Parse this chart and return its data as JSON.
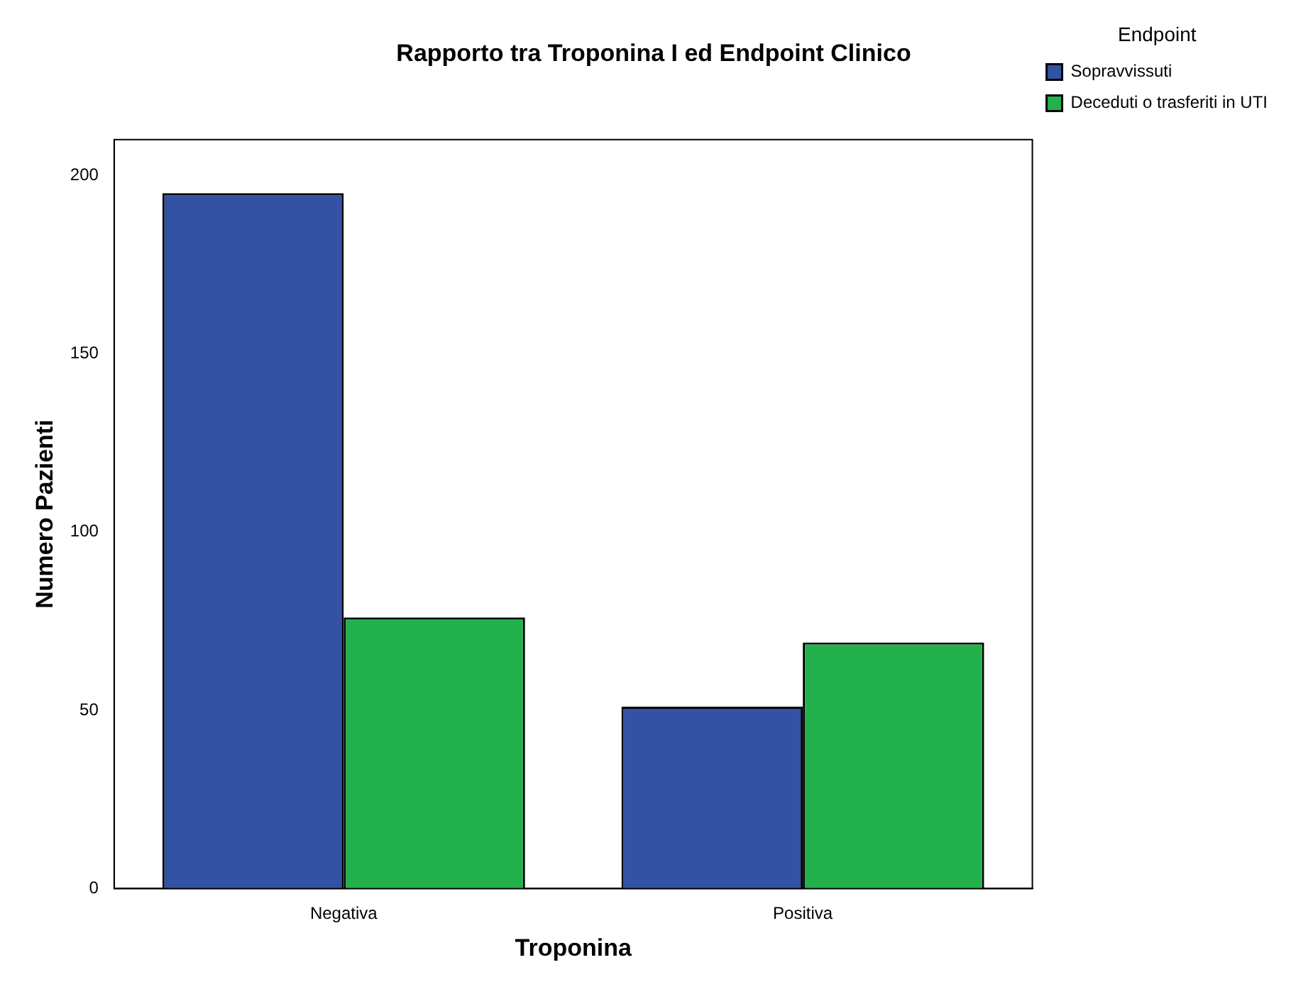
{
  "chart_data": {
    "type": "bar",
    "title": "Rapporto tra Troponina I ed Endpoint Clinico",
    "xlabel": "Troponina",
    "ylabel": "Numero Pazienti",
    "legend_title": "Endpoint",
    "categories": [
      "Negativa",
      "Positiva"
    ],
    "series": [
      {
        "name": "Sopravvissuti",
        "color": "#3352a4",
        "values": [
          195,
          51
        ]
      },
      {
        "name": "Deceduti o trasferiti in UTI",
        "color": "#22b14c",
        "values": [
          76,
          69
        ]
      }
    ],
    "ylim": [
      0,
      210
    ],
    "yticks": [
      0,
      50,
      100,
      150,
      200
    ],
    "grid": false,
    "legend": "top right"
  }
}
